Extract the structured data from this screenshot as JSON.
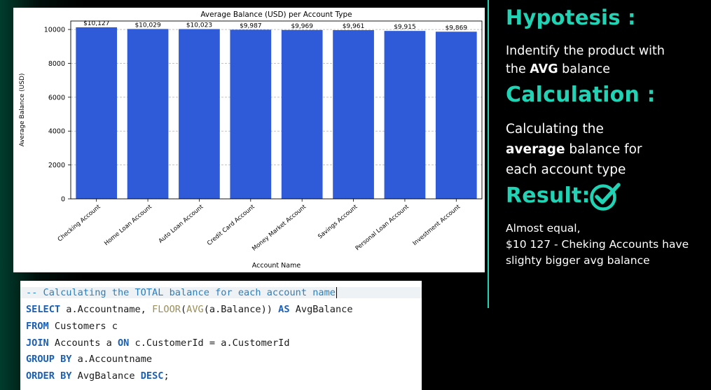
{
  "colors": {
    "accent": "#1fd3b4",
    "bar": "#2f5bd9",
    "background": "#000000"
  },
  "chart_data": {
    "type": "bar",
    "title": "Average Balance (USD) per Account Type",
    "xlabel": "Account Name",
    "ylabel": "Average Balance (USD)",
    "ylim": [
      0,
      10500
    ],
    "yticks": [
      0,
      2000,
      4000,
      6000,
      8000,
      10000
    ],
    "grid": true,
    "categories": [
      "Checking Account",
      "Home Loan Account",
      "Auto Loan Account",
      "Credit Card Account",
      "Money Market Account",
      "Savings Account",
      "Personal Loan Account",
      "Investment Account"
    ],
    "values": [
      10127,
      10029,
      10023,
      9987,
      9969,
      9961,
      9915,
      9869
    ],
    "data_labels": [
      "$10,127",
      "$10,029",
      "$10,023",
      "$9,987",
      "$9,969",
      "$9,961",
      "$9,915",
      "$9,869"
    ]
  },
  "code": {
    "lines": [
      [
        {
          "t": "-- Calculating the TOTAL balance for each account name",
          "c": "cmt"
        }
      ],
      [
        {
          "t": "SELECT",
          "c": "kw"
        },
        {
          "t": " a.Accountname, ",
          "c": ""
        },
        {
          "t": "FLOOR",
          "c": "fn"
        },
        {
          "t": "(",
          "c": ""
        },
        {
          "t": "AVG",
          "c": "fn"
        },
        {
          "t": "(a.Balance)) ",
          "c": ""
        },
        {
          "t": "AS",
          "c": "kw"
        },
        {
          "t": " AvgBalance",
          "c": ""
        }
      ],
      [
        {
          "t": "FROM",
          "c": "kw"
        },
        {
          "t": " Customers c",
          "c": ""
        }
      ],
      [
        {
          "t": "JOIN",
          "c": "kw"
        },
        {
          "t": " Accounts a ",
          "c": ""
        },
        {
          "t": "ON",
          "c": "kw"
        },
        {
          "t": " c.CustomerId = a.CustomerId",
          "c": ""
        }
      ],
      [
        {
          "t": "GROUP BY",
          "c": "kw"
        },
        {
          "t": " a.Accountname",
          "c": ""
        }
      ],
      [
        {
          "t": "ORDER BY",
          "c": "kw"
        },
        {
          "t": " AvgBalance ",
          "c": ""
        },
        {
          "t": "DESC",
          "c": "kw"
        },
        {
          "t": ";",
          "c": ""
        }
      ]
    ]
  },
  "panel": {
    "hypothesis_heading": "Hypotesis :",
    "hypothesis_text_pre": "Indentify the product with",
    "hypothesis_text_line2_pre": "the ",
    "hypothesis_text_bold": "AVG",
    "hypothesis_text_post": " balance",
    "calculation_heading": "Calculation :",
    "calculation_line1": "Calculating the",
    "calculation_bold": "average",
    "calculation_line2_post": " balance for",
    "calculation_line3": "each account type",
    "result_heading": "Result:",
    "result_icon": "check-circle-icon",
    "result_line1": "Almost equal,",
    "result_line2": "$10 127  - Cheking Accounts have",
    "result_line3": "slighty bigger avg balance"
  }
}
